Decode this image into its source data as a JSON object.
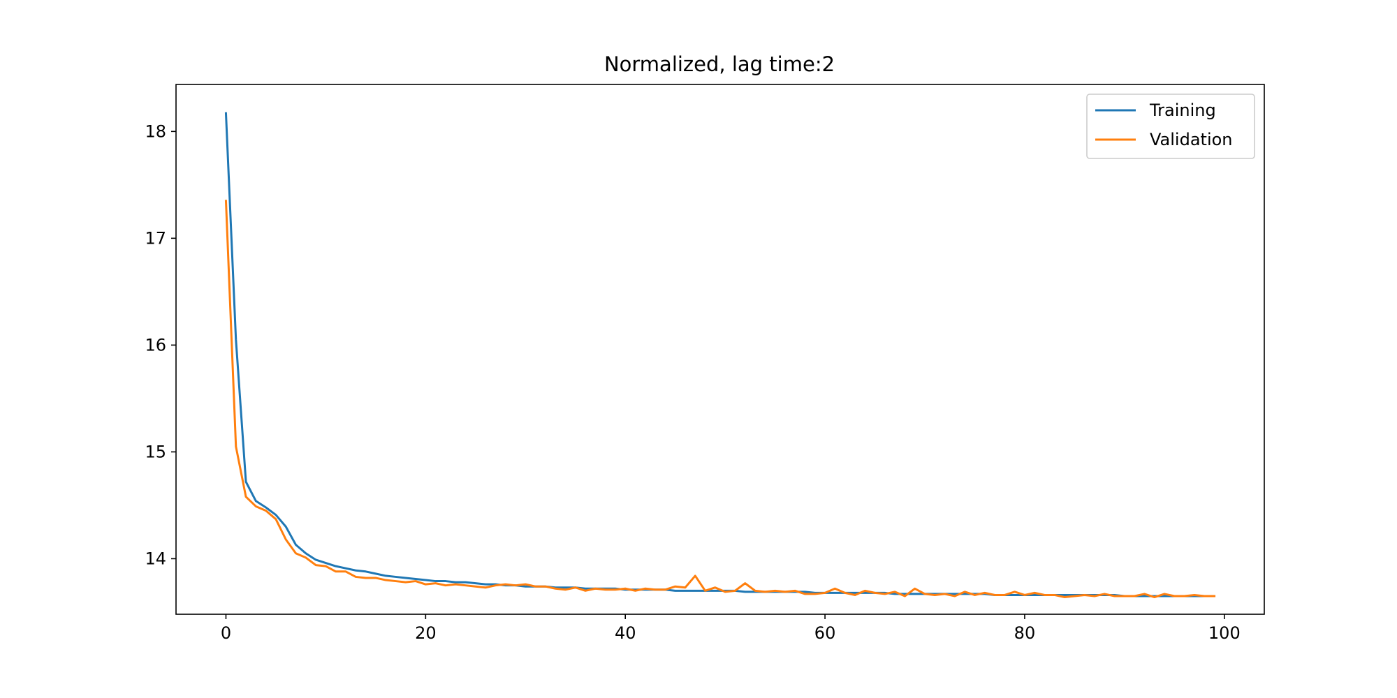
{
  "chart_data": {
    "type": "line",
    "title": "Normalized, lag time:2",
    "xlabel": "",
    "ylabel": "",
    "xlim": [
      -5,
      104
    ],
    "ylim": [
      13.48,
      18.44
    ],
    "xticks": [
      0,
      20,
      40,
      60,
      80,
      100
    ],
    "yticks": [
      14,
      15,
      16,
      17,
      18
    ],
    "grid": false,
    "legend_position": "top-right",
    "series": [
      {
        "name": "Training",
        "color": "#1f77b4",
        "x": [
          0,
          1,
          2,
          3,
          4,
          5,
          6,
          7,
          8,
          9,
          10,
          11,
          12,
          13,
          14,
          15,
          16,
          17,
          18,
          19,
          20,
          21,
          22,
          23,
          24,
          25,
          26,
          27,
          28,
          29,
          30,
          31,
          32,
          33,
          34,
          35,
          36,
          37,
          38,
          39,
          40,
          41,
          42,
          43,
          44,
          45,
          46,
          47,
          48,
          49,
          50,
          51,
          52,
          53,
          54,
          55,
          56,
          57,
          58,
          59,
          60,
          61,
          62,
          63,
          64,
          65,
          66,
          67,
          68,
          69,
          70,
          71,
          72,
          73,
          74,
          75,
          76,
          77,
          78,
          79,
          80,
          81,
          82,
          83,
          84,
          85,
          86,
          87,
          88,
          89,
          90,
          91,
          92,
          93,
          94,
          95,
          96,
          97,
          98,
          99
        ],
        "y": [
          18.17,
          16.05,
          14.72,
          14.54,
          14.48,
          14.41,
          14.3,
          14.13,
          14.05,
          13.99,
          13.96,
          13.93,
          13.91,
          13.89,
          13.88,
          13.86,
          13.84,
          13.83,
          13.82,
          13.81,
          13.8,
          13.79,
          13.79,
          13.78,
          13.78,
          13.77,
          13.76,
          13.76,
          13.75,
          13.75,
          13.74,
          13.74,
          13.74,
          13.73,
          13.73,
          13.73,
          13.72,
          13.72,
          13.72,
          13.72,
          13.71,
          13.71,
          13.71,
          13.71,
          13.71,
          13.7,
          13.7,
          13.7,
          13.7,
          13.7,
          13.7,
          13.7,
          13.69,
          13.69,
          13.69,
          13.69,
          13.69,
          13.69,
          13.69,
          13.68,
          13.68,
          13.68,
          13.68,
          13.68,
          13.68,
          13.68,
          13.68,
          13.67,
          13.67,
          13.67,
          13.67,
          13.67,
          13.67,
          13.67,
          13.67,
          13.67,
          13.67,
          13.66,
          13.66,
          13.66,
          13.66,
          13.66,
          13.66,
          13.66,
          13.66,
          13.66,
          13.66,
          13.66,
          13.66,
          13.66,
          13.65,
          13.65,
          13.65,
          13.65,
          13.65,
          13.65,
          13.65,
          13.65,
          13.65,
          13.65
        ]
      },
      {
        "name": "Validation",
        "color": "#ff7f0e",
        "x": [
          0,
          1,
          2,
          3,
          4,
          5,
          6,
          7,
          8,
          9,
          10,
          11,
          12,
          13,
          14,
          15,
          16,
          17,
          18,
          19,
          20,
          21,
          22,
          23,
          24,
          25,
          26,
          27,
          28,
          29,
          30,
          31,
          32,
          33,
          34,
          35,
          36,
          37,
          38,
          39,
          40,
          41,
          42,
          43,
          44,
          45,
          46,
          47,
          48,
          49,
          50,
          51,
          52,
          53,
          54,
          55,
          56,
          57,
          58,
          59,
          60,
          61,
          62,
          63,
          64,
          65,
          66,
          67,
          68,
          69,
          70,
          71,
          72,
          73,
          74,
          75,
          76,
          77,
          78,
          79,
          80,
          81,
          82,
          83,
          84,
          85,
          86,
          87,
          88,
          89,
          90,
          91,
          92,
          93,
          94,
          95,
          96,
          97,
          98,
          99
        ],
        "y": [
          17.35,
          15.05,
          14.58,
          14.49,
          14.45,
          14.37,
          14.18,
          14.05,
          14.01,
          13.94,
          13.93,
          13.88,
          13.88,
          13.83,
          13.82,
          13.82,
          13.8,
          13.79,
          13.78,
          13.79,
          13.76,
          13.77,
          13.75,
          13.76,
          13.75,
          13.74,
          13.73,
          13.75,
          13.76,
          13.75,
          13.76,
          13.74,
          13.74,
          13.72,
          13.71,
          13.73,
          13.7,
          13.72,
          13.71,
          13.71,
          13.72,
          13.7,
          13.72,
          13.71,
          13.71,
          13.74,
          13.73,
          13.84,
          13.7,
          13.73,
          13.69,
          13.7,
          13.77,
          13.7,
          13.69,
          13.7,
          13.69,
          13.7,
          13.67,
          13.67,
          13.68,
          13.72,
          13.68,
          13.66,
          13.7,
          13.68,
          13.67,
          13.69,
          13.65,
          13.72,
          13.67,
          13.66,
          13.67,
          13.65,
          13.69,
          13.66,
          13.68,
          13.66,
          13.66,
          13.69,
          13.66,
          13.68,
          13.66,
          13.66,
          13.64,
          13.65,
          13.66,
          13.65,
          13.67,
          13.65,
          13.65,
          13.65,
          13.67,
          13.64,
          13.67,
          13.65,
          13.65,
          13.66,
          13.65,
          13.65
        ]
      }
    ]
  }
}
